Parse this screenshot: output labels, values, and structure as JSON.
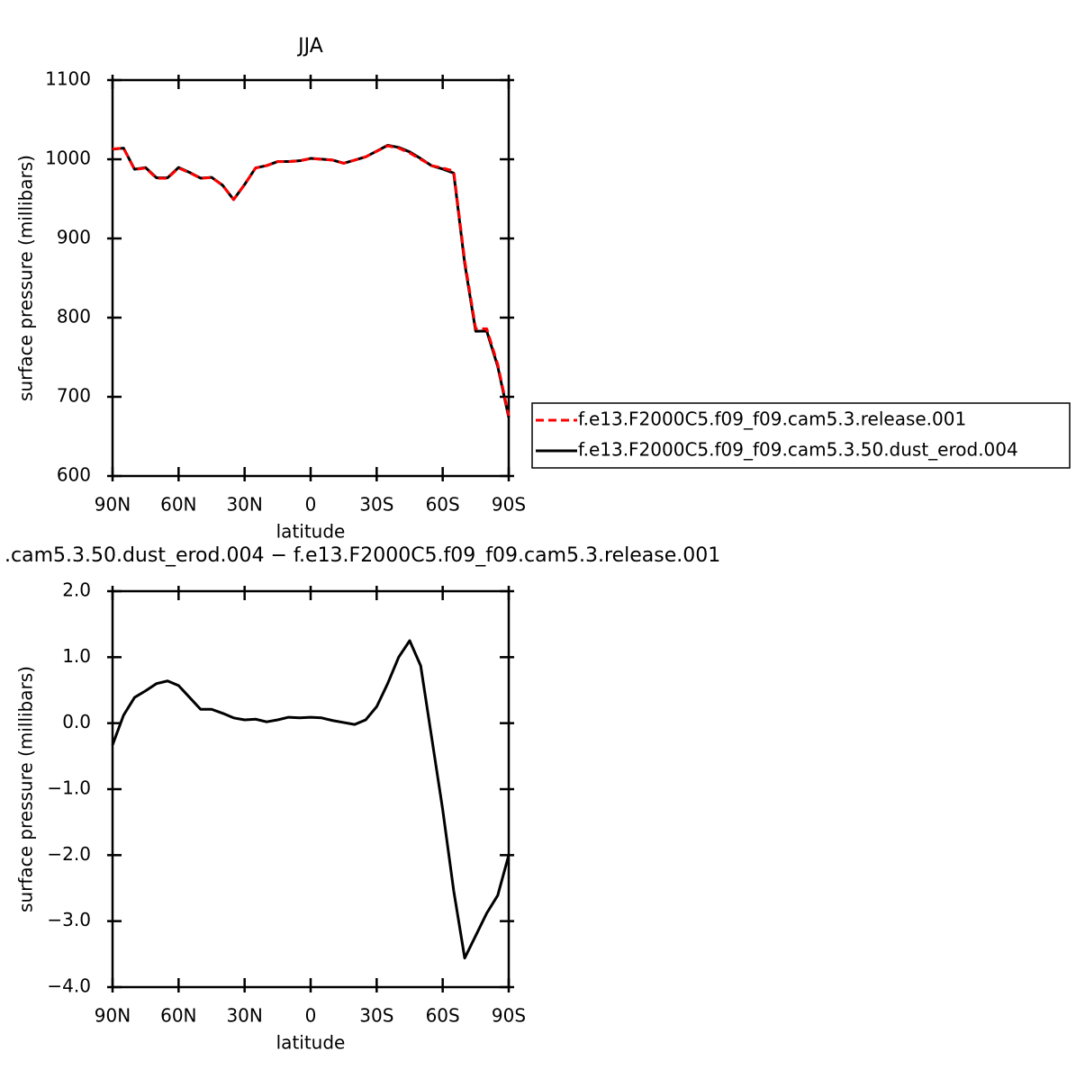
{
  "chart_data": [
    {
      "type": "line",
      "title": "JJA",
      "xlabel": "latitude",
      "ylabel": "surface pressure (millibars)",
      "x": [
        90,
        85,
        80,
        75,
        70,
        65,
        60,
        55,
        50,
        45,
        40,
        35,
        30,
        25,
        20,
        15,
        10,
        5,
        0,
        -5,
        -10,
        -15,
        -20,
        -25,
        -30,
        -35,
        -40,
        -45,
        -50,
        -55,
        -60,
        -65,
        -70,
        -75,
        -80,
        -85,
        -90
      ],
      "series": [
        {
          "name": "f.e13.F2000C5.f09_f09.cam5.3.release.001",
          "color": "#ff0000",
          "linestyle": "dashed",
          "values": [
            1013,
            1014,
            987,
            989,
            976,
            976,
            989,
            983,
            976,
            977,
            967,
            949,
            968,
            989,
            992,
            997,
            997,
            998,
            1001,
            1000,
            999,
            995,
            999,
            1003,
            1010,
            1017,
            1014,
            1008,
            1000,
            992,
            989,
            985,
            872,
            786,
            786,
            741,
            676
          ]
        },
        {
          "name": "f.e13.F2000C5.f09_f09.cam5.3.50.dust_erod.004",
          "color": "#000000",
          "linestyle": "solid",
          "values": [
            1012.7,
            1014.1,
            987.4,
            989.5,
            976.6,
            976.6,
            989.6,
            983.4,
            976.2,
            977.2,
            967.2,
            949.1,
            968.1,
            989.1,
            992,
            997.1,
            997.1,
            998.1,
            1001.1,
            1000.1,
            999,
            995,
            999,
            1003.1,
            1010.3,
            1017.6,
            1015,
            1009.3,
            1000.9,
            991.8,
            987.7,
            982.5,
            868.4,
            782.8,
            783.1,
            738.4,
            674
          ]
        }
      ],
      "xlim": [
        90,
        -90
      ],
      "xticks": [
        {
          "value": 90,
          "label": "90N"
        },
        {
          "value": 60,
          "label": "60N"
        },
        {
          "value": 30,
          "label": "30N"
        },
        0,
        {
          "value": -30,
          "label": "30S"
        },
        {
          "value": -60,
          "label": "60S"
        },
        {
          "value": -90,
          "label": "90S"
        }
      ],
      "ylim": [
        600,
        1100
      ],
      "yticks": [
        600,
        700,
        800,
        900,
        1000,
        1100
      ],
      "legend": "right"
    },
    {
      "type": "line",
      "title": ".cam5.3.50.dust_erod.004 − f.e13.F2000C5.f09_f09.cam5.3.release.001",
      "xlabel": "latitude",
      "ylabel": "surface pressure (millibars)",
      "x": [
        90,
        85,
        80,
        75,
        70,
        65,
        60,
        55,
        50,
        45,
        40,
        35,
        30,
        25,
        20,
        15,
        10,
        5,
        0,
        -5,
        -10,
        -15,
        -20,
        -25,
        -30,
        -35,
        -40,
        -45,
        -50,
        -55,
        -60,
        -65,
        -70,
        -75,
        -80,
        -85,
        -90
      ],
      "series": [
        {
          "color": "#000000",
          "linestyle": "solid",
          "values": [
            -0.33,
            0.12,
            0.39,
            0.49,
            0.6,
            0.64,
            0.57,
            0.39,
            0.21,
            0.21,
            0.15,
            0.08,
            0.05,
            0.06,
            0.02,
            0.05,
            0.09,
            0.08,
            0.09,
            0.08,
            0.04,
            0.01,
            -0.02,
            0.05,
            0.25,
            0.6,
            1.0,
            1.25,
            0.87,
            -0.22,
            -1.31,
            -2.54,
            -3.56,
            -3.22,
            -2.88,
            -2.61,
            -2.0
          ]
        }
      ],
      "xlim": [
        90,
        -90
      ],
      "xticks": [
        {
          "value": 90,
          "label": "90N"
        },
        {
          "value": 60,
          "label": "60N"
        },
        {
          "value": 30,
          "label": "30N"
        },
        0,
        {
          "value": -30,
          "label": "30S"
        },
        {
          "value": -60,
          "label": "60S"
        },
        {
          "value": -90,
          "label": "90S"
        }
      ],
      "ylim": [
        -4,
        2
      ],
      "yticks": [
        {
          "value": -4,
          "label": "−4.0"
        },
        {
          "value": -3,
          "label": "−3.0"
        },
        {
          "value": -2,
          "label": "−2.0"
        },
        {
          "value": -1,
          "label": "−1.0"
        },
        {
          "value": 0,
          "label": "0.0"
        },
        {
          "value": 1,
          "label": "1.0"
        },
        {
          "value": 2,
          "label": "2.0"
        }
      ]
    }
  ]
}
